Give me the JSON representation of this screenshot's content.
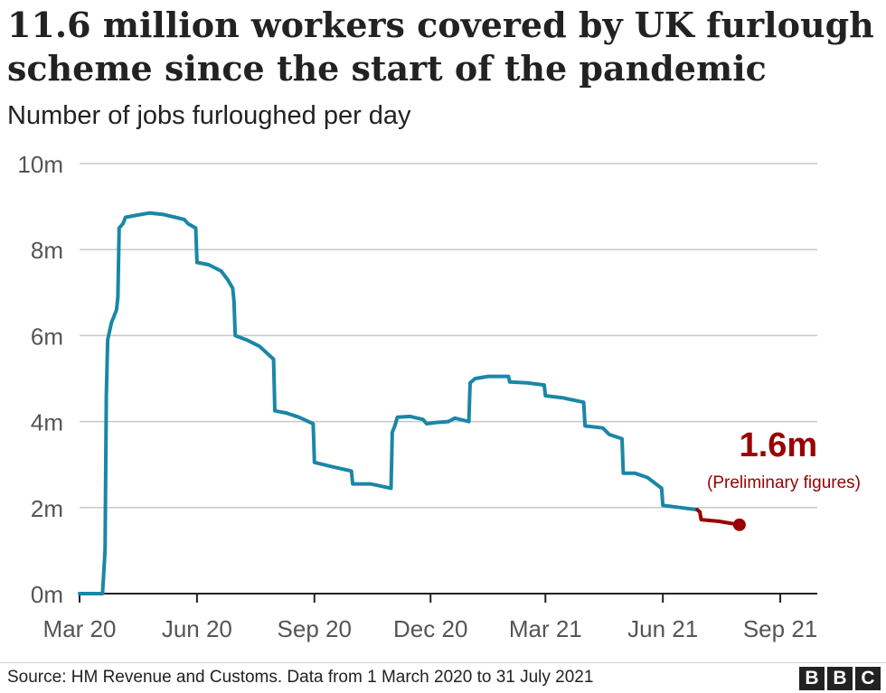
{
  "title_lines": [
    "11.6 million workers covered by UK furlough",
    "scheme since the start of the pandemic"
  ],
  "subtitle": "Number of jobs furloughed per day",
  "source": "Source: HM Revenue and Customs. Data from 1 March 2020 to 31 July 2021",
  "logo_letters": [
    "B",
    "B",
    "C"
  ],
  "colors": {
    "main_line": "#1a87a6",
    "preliminary": "#990000",
    "grid": "#c8c8c8",
    "axis_text": "#555555"
  },
  "chart_data": {
    "type": "line",
    "title": "11.6 million workers covered by UK furlough scheme since the start of the pandemic",
    "subtitle": "Number of jobs furloughed per day",
    "ylim": [
      0,
      10
    ],
    "yticks": [
      0,
      2,
      4,
      6,
      8,
      10
    ],
    "ytick_labels": [
      "0m",
      "2m",
      "4m",
      "6m",
      "8m",
      "10m"
    ],
    "xlim": [
      "2020-03-01",
      "2021-09-30"
    ],
    "xticks": [
      "2020-03-01",
      "2020-06-01",
      "2020-09-01",
      "2020-12-01",
      "2021-03-01",
      "2021-06-01",
      "2021-09-01"
    ],
    "xtick_labels": [
      "Mar 20",
      "Jun 20",
      "Sep 20",
      "Dec 20",
      "Mar 21",
      "Jun 21",
      "Sep 21"
    ],
    "grid": true,
    "annotation": {
      "value_label": "1.6m",
      "note": "(Preliminary figures)"
    },
    "series": [
      {
        "values": [
          [
            "2020-03-01",
            0.0
          ],
          [
            "2020-03-19",
            0.0
          ],
          [
            "2020-03-20",
            0.5
          ],
          [
            "2020-03-21",
            1.0
          ],
          [
            "2020-03-22",
            4.6
          ],
          [
            "2020-03-23",
            5.9
          ],
          [
            "2020-03-26",
            6.3
          ],
          [
            "2020-03-30",
            6.6
          ],
          [
            "2020-03-31",
            6.9
          ],
          [
            "2020-04-01",
            8.5
          ],
          [
            "2020-04-04",
            8.6
          ],
          [
            "2020-04-06",
            8.75
          ],
          [
            "2020-04-15",
            8.8
          ],
          [
            "2020-04-25",
            8.85
          ],
          [
            "2020-05-05",
            8.82
          ],
          [
            "2020-05-15",
            8.75
          ],
          [
            "2020-05-22",
            8.7
          ],
          [
            "2020-05-25",
            8.6
          ],
          [
            "2020-05-31",
            8.5
          ],
          [
            "2020-06-01",
            7.7
          ],
          [
            "2020-06-10",
            7.65
          ],
          [
            "2020-06-20",
            7.5
          ],
          [
            "2020-06-25",
            7.3
          ],
          [
            "2020-06-29",
            7.1
          ],
          [
            "2020-06-30",
            6.8
          ],
          [
            "2020-07-01",
            6.0
          ],
          [
            "2020-07-10",
            5.9
          ],
          [
            "2020-07-20",
            5.75
          ],
          [
            "2020-07-31",
            5.45
          ],
          [
            "2020-08-01",
            4.25
          ],
          [
            "2020-08-10",
            4.2
          ],
          [
            "2020-08-20",
            4.1
          ],
          [
            "2020-08-31",
            3.95
          ],
          [
            "2020-09-01",
            3.05
          ],
          [
            "2020-09-15",
            2.95
          ],
          [
            "2020-09-30",
            2.85
          ],
          [
            "2020-10-01",
            2.55
          ],
          [
            "2020-10-15",
            2.55
          ],
          [
            "2020-10-31",
            2.45
          ],
          [
            "2020-11-01",
            3.75
          ],
          [
            "2020-11-03",
            3.9
          ],
          [
            "2020-11-05",
            4.1
          ],
          [
            "2020-11-15",
            4.12
          ],
          [
            "2020-11-25",
            4.05
          ],
          [
            "2020-11-28",
            3.95
          ],
          [
            "2020-12-05",
            3.98
          ],
          [
            "2020-12-15",
            4.0
          ],
          [
            "2020-12-20",
            4.08
          ],
          [
            "2020-12-31",
            4.0
          ],
          [
            "2021-01-01",
            4.9
          ],
          [
            "2021-01-05",
            5.0
          ],
          [
            "2021-01-15",
            5.05
          ],
          [
            "2021-01-31",
            5.05
          ],
          [
            "2021-02-01",
            4.92
          ],
          [
            "2021-02-15",
            4.9
          ],
          [
            "2021-02-28",
            4.85
          ],
          [
            "2021-03-01",
            4.6
          ],
          [
            "2021-03-15",
            4.55
          ],
          [
            "2021-03-31",
            4.45
          ],
          [
            "2021-04-01",
            3.9
          ],
          [
            "2021-04-15",
            3.85
          ],
          [
            "2021-04-20",
            3.7
          ],
          [
            "2021-04-30",
            3.6
          ],
          [
            "2021-05-01",
            2.8
          ],
          [
            "2021-05-10",
            2.8
          ],
          [
            "2021-05-20",
            2.7
          ],
          [
            "2021-05-31",
            2.45
          ],
          [
            "2021-06-01",
            2.05
          ],
          [
            "2021-06-15",
            2.0
          ],
          [
            "2021-06-28",
            1.95
          ]
        ]
      },
      {
        "values": [
          [
            "2021-06-28",
            1.95
          ],
          [
            "2021-06-30",
            1.9
          ],
          [
            "2021-07-01",
            1.72
          ],
          [
            "2021-07-15",
            1.68
          ],
          [
            "2021-07-31",
            1.6
          ]
        ]
      }
    ]
  }
}
